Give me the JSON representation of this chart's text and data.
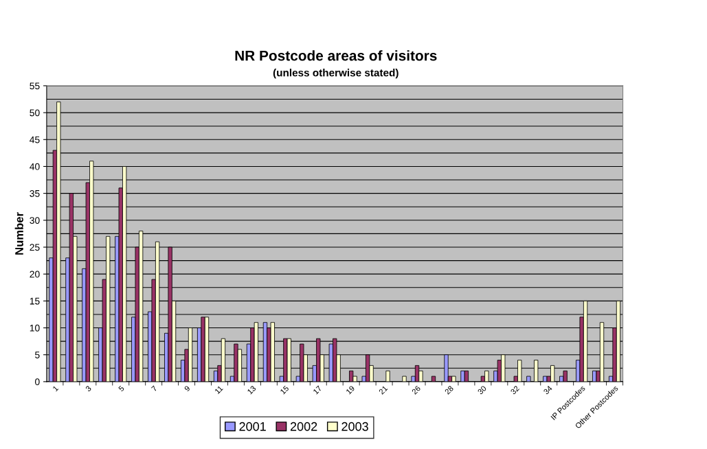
{
  "chart_data": {
    "type": "bar",
    "title": "NR Postcode areas of visitors",
    "subtitle": "(unless otherwise stated)",
    "ylabel": "Number",
    "categories": [
      "1",
      null,
      "3",
      null,
      "5",
      null,
      "7",
      null,
      "9",
      null,
      "11",
      null,
      "13",
      null,
      "15",
      null,
      "17",
      null,
      "19",
      null,
      "21",
      null,
      "26",
      null,
      "28",
      null,
      "30",
      null,
      "32",
      null,
      "34",
      null,
      "IP Postcodes",
      null,
      "Other Postcodes"
    ],
    "series": [
      {
        "name": "2001",
        "color": "#9999ff",
        "values": [
          23,
          23,
          21,
          10,
          27,
          12,
          13,
          9,
          4,
          10,
          2,
          1,
          7,
          11,
          1,
          1,
          3,
          7,
          null,
          1,
          null,
          null,
          1,
          null,
          5,
          2,
          null,
          2,
          null,
          1,
          1,
          1,
          4,
          2,
          1
        ]
      },
      {
        "name": "2002",
        "color": "#993366",
        "values": [
          43,
          35,
          37,
          19,
          36,
          25,
          19,
          25,
          6,
          12,
          3,
          7,
          10,
          10,
          8,
          7,
          8,
          8,
          2,
          5,
          null,
          null,
          3,
          1,
          1,
          2,
          1,
          4,
          1,
          null,
          1,
          2,
          12,
          2,
          10
        ]
      },
      {
        "name": "2003",
        "color": "#ffffcc",
        "values": [
          52,
          27,
          41,
          27,
          40,
          28,
          26,
          15,
          10,
          12,
          8,
          6,
          11,
          11,
          8,
          5,
          5,
          5,
          1,
          3,
          2,
          1,
          2,
          null,
          1,
          null,
          2,
          5,
          4,
          4,
          3,
          null,
          15,
          11,
          15
        ]
      }
    ],
    "ylim": [
      0,
      55
    ],
    "yticks": [
      0,
      {
        "value": 2.5,
        "label": null
      },
      5,
      {
        "value": 7.5,
        "label": null
      },
      10,
      {
        "value": 12.5,
        "label": null
      },
      15,
      {
        "value": 17.5,
        "label": null
      },
      20,
      {
        "value": 22.5,
        "label": null
      },
      25,
      {
        "value": 27.5,
        "label": null
      },
      30,
      {
        "value": 32.5,
        "label": null
      },
      35,
      {
        "value": 37.5,
        "label": null
      },
      40,
      {
        "value": 42.5,
        "label": null
      },
      45,
      {
        "value": 47.5,
        "label": null
      },
      50,
      {
        "value": 52.5,
        "label": null
      },
      55
    ],
    "grid": "y",
    "legend": "bottom"
  }
}
